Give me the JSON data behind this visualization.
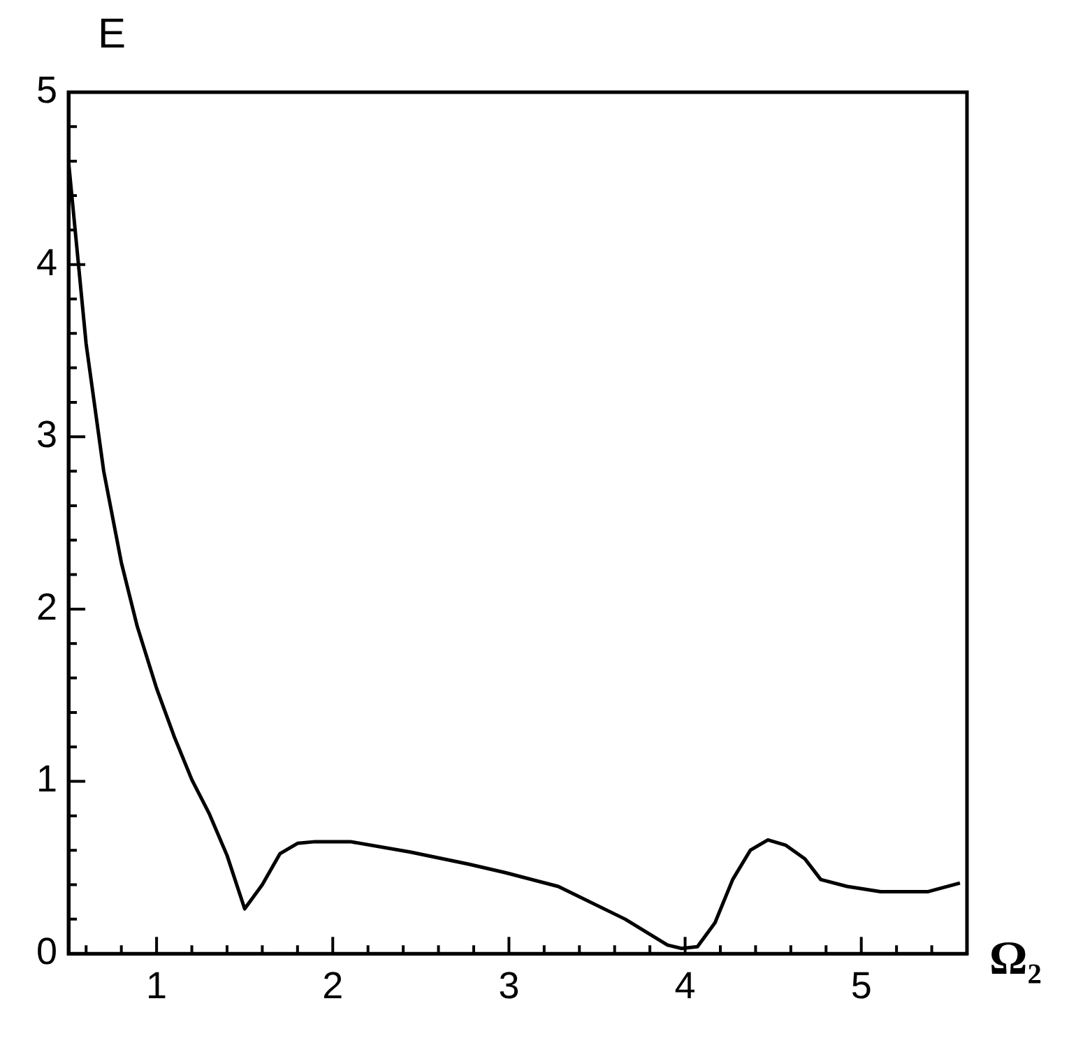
{
  "chart_data": {
    "type": "line",
    "xlabel": "Ω₂",
    "ylabel": "E",
    "x": [
      0.5,
      0.6,
      0.7,
      0.8,
      0.89,
      1.0,
      1.1,
      1.2,
      1.3,
      1.4,
      1.5,
      1.6,
      1.7,
      1.8,
      1.9,
      2.1,
      2.44,
      2.77,
      2.98,
      3.28,
      3.66,
      3.9,
      3.98,
      4.07,
      4.17,
      4.27,
      4.37,
      4.47,
      4.57,
      4.68,
      4.77,
      4.92,
      5.11,
      5.38,
      5.56
    ],
    "series": [
      {
        "color": "#000000",
        "values": [
          4.6,
          3.54,
          2.8,
          2.27,
          1.9,
          1.54,
          1.26,
          1.01,
          0.81,
          0.57,
          0.26,
          0.4,
          0.58,
          0.64,
          0.65,
          0.65,
          0.59,
          0.52,
          0.47,
          0.39,
          0.2,
          0.05,
          0.03,
          0.04,
          0.18,
          0.43,
          0.6,
          0.66,
          0.63,
          0.55,
          0.43,
          0.39,
          0.36,
          0.36,
          0.41
        ]
      }
    ],
    "xlim": [
      0.5,
      5.6
    ],
    "xticks": [
      {
        "value": 0.6,
        "label": null
      },
      {
        "value": 0.8,
        "label": null
      },
      1,
      {
        "value": 1.2,
        "label": null
      },
      {
        "value": 1.4,
        "label": null
      },
      {
        "value": 1.6,
        "label": null
      },
      {
        "value": 1.8,
        "label": null
      },
      2,
      {
        "value": 2.2,
        "label": null
      },
      {
        "value": 2.4,
        "label": null
      },
      {
        "value": 2.6,
        "label": null
      },
      {
        "value": 2.8,
        "label": null
      },
      3,
      {
        "value": 3.2,
        "label": null
      },
      {
        "value": 3.4,
        "label": null
      },
      {
        "value": 3.6,
        "label": null
      },
      {
        "value": 3.8,
        "label": null
      },
      4,
      {
        "value": 4.2,
        "label": null
      },
      {
        "value": 4.4,
        "label": null
      },
      {
        "value": 4.6,
        "label": null
      },
      {
        "value": 4.8,
        "label": null
      },
      5,
      {
        "value": 5.2,
        "label": null
      },
      {
        "value": 5.4,
        "label": null
      }
    ],
    "ylim": [
      0,
      5
    ],
    "yticks": [
      0,
      {
        "value": 0.2,
        "label": null
      },
      {
        "value": 0.4,
        "label": null
      },
      {
        "value": 0.6,
        "label": null
      },
      {
        "value": 0.8,
        "label": null
      },
      1,
      {
        "value": 1.2,
        "label": null
      },
      {
        "value": 1.4,
        "label": null
      },
      {
        "value": 1.6,
        "label": null
      },
      {
        "value": 1.8,
        "label": null
      },
      2,
      {
        "value": 2.2,
        "label": null
      },
      {
        "value": 2.4,
        "label": null
      },
      {
        "value": 2.6,
        "label": null
      },
      {
        "value": 2.8,
        "label": null
      },
      3,
      {
        "value": 3.2,
        "label": null
      },
      {
        "value": 3.4,
        "label": null
      },
      {
        "value": 3.6,
        "label": null
      },
      {
        "value": 3.8,
        "label": null
      },
      4,
      {
        "value": 4.2,
        "label": null
      },
      {
        "value": 4.4,
        "label": null
      },
      {
        "value": 4.6,
        "label": null
      },
      {
        "value": 4.8,
        "label": null
      },
      5
    ],
    "grid": false,
    "legend": false,
    "marker": "none",
    "line_style": "solid"
  }
}
